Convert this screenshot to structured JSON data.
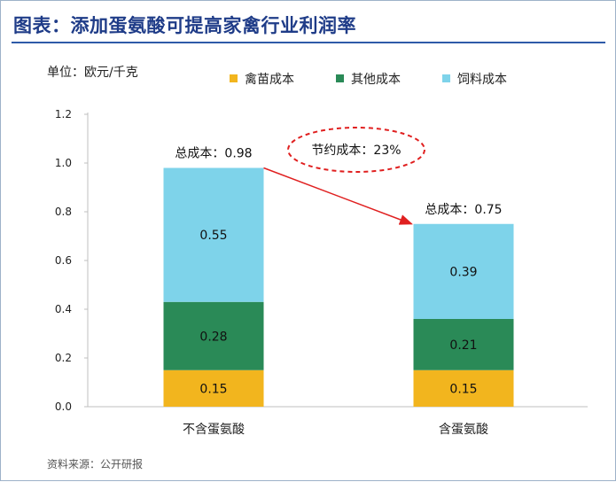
{
  "title": "图表：添加蛋氨酸可提高家禽行业利润率",
  "source": "资料来源：公开研报",
  "chart_data": {
    "type": "bar",
    "stacked": true,
    "unit_label": "单位：欧元/千克",
    "categories": [
      "不含蛋氨酸",
      "含蛋氨酸"
    ],
    "series": [
      {
        "name": "禽苗成本",
        "values": [
          0.15,
          0.15
        ],
        "color": "#f2b51e"
      },
      {
        "name": "其他成本",
        "values": [
          0.28,
          0.21
        ],
        "color": "#2a8a57"
      },
      {
        "name": "饲料成本",
        "values": [
          0.55,
          0.39
        ],
        "color": "#7ed3ea"
      }
    ],
    "totals": [
      {
        "label": "总成本：",
        "value": "0.98"
      },
      {
        "label": "总成本：",
        "value": "0.75"
      }
    ],
    "annotation": "节约成本：23%",
    "yticks": [
      "0.0",
      "0.2",
      "0.4",
      "0.6",
      "0.8",
      "1.0",
      "1.2"
    ],
    "ylim": [
      0,
      1.2
    ],
    "legend_position": "top",
    "arrow_color": "#e02020"
  }
}
